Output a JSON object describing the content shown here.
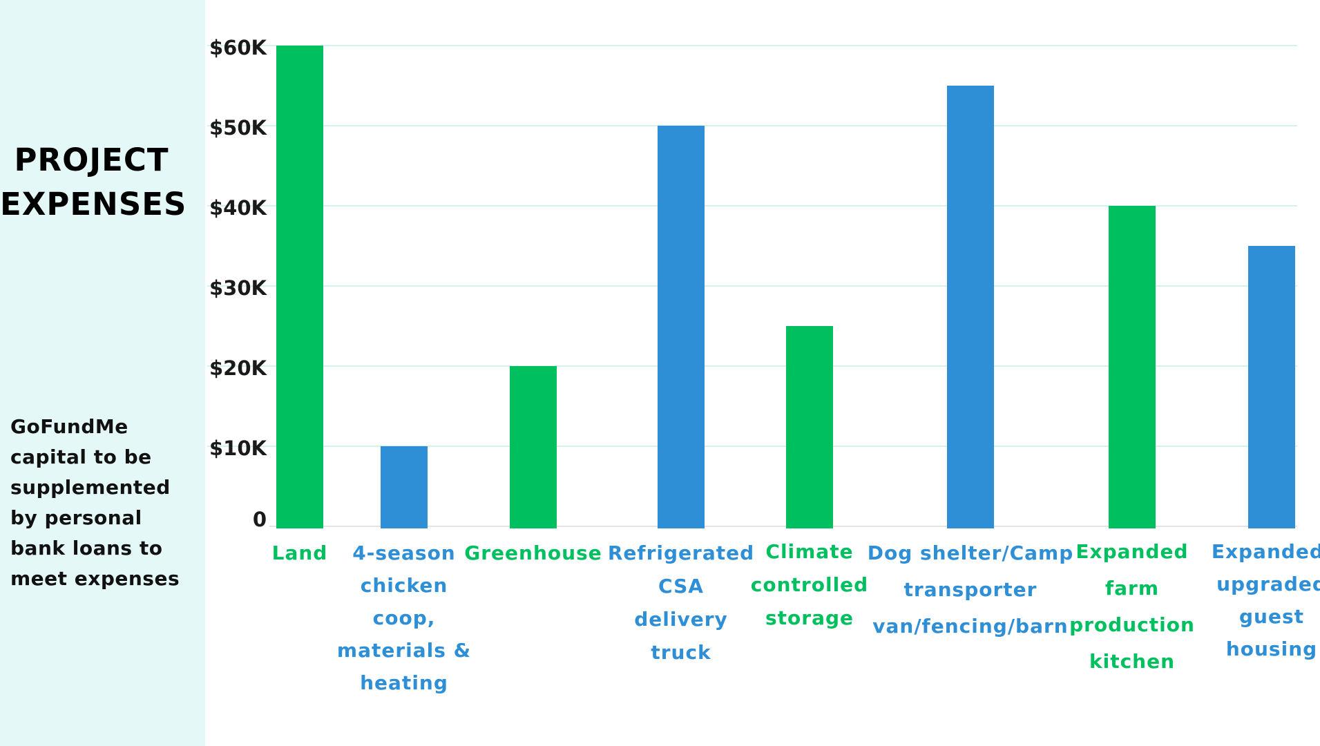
{
  "panel": {
    "title_line1": "PROJECT",
    "title_line2": "EXPENSES",
    "note_lines": [
      "GoFundMe",
      "capital to be",
      "supplemented",
      "by personal",
      "bank loans to",
      "meet expenses"
    ]
  },
  "colors": {
    "panel_background": "#e3f8f7",
    "green": "#00bf5f",
    "blue": "#2e8fd6",
    "gridline": "#d3f2ee",
    "tick_text": "#1a1a1a"
  },
  "chart_data": {
    "type": "bar",
    "ylim": [
      0,
      60000
    ],
    "yticks": [
      {
        "value": 0,
        "label": "0"
      },
      {
        "value": 10000,
        "label": "$10K"
      },
      {
        "value": 20000,
        "label": "$20K"
      },
      {
        "value": 30000,
        "label": "$30K"
      },
      {
        "value": 40000,
        "label": "$40K"
      },
      {
        "value": 50000,
        "label": "$50K"
      },
      {
        "value": 60000,
        "label": "$60K"
      }
    ],
    "grid": true,
    "categories": [
      {
        "label_lines": [
          "Land"
        ],
        "value": 60000,
        "color": "green"
      },
      {
        "label_lines": [
          "4-season",
          "chicken",
          "coop,",
          "materials &",
          "heating"
        ],
        "value": 10000,
        "color": "blue"
      },
      {
        "label_lines": [
          "Greenhouse"
        ],
        "value": 20000,
        "color": "green"
      },
      {
        "label_lines": [
          "Refrigerated",
          "CSA",
          "delivery",
          "truck"
        ],
        "value": 50000,
        "color": "blue"
      },
      {
        "label_lines": [
          "Climate",
          "controlled",
          "storage"
        ],
        "value": 25000,
        "color": "green"
      },
      {
        "label_lines": [
          "Dog shelter/Camp",
          "transporter",
          "van/fencing/barn"
        ],
        "value": 55000,
        "color": "blue"
      },
      {
        "label_lines": [
          "Expanded",
          "farm",
          "production",
          "kitchen"
        ],
        "value": 40000,
        "color": "green"
      },
      {
        "label_lines": [
          "Expanded/",
          "upgraded",
          "guest",
          "housing"
        ],
        "value": 35000,
        "color": "blue"
      }
    ]
  }
}
